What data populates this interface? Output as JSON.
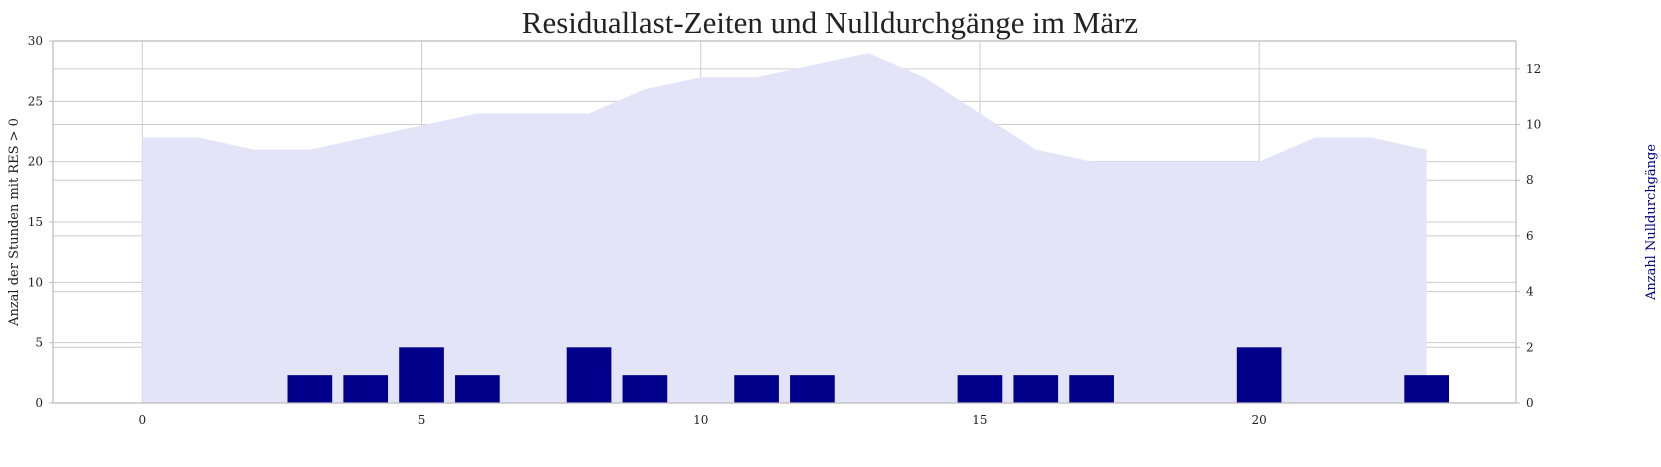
{
  "chart_data": {
    "type": "bar",
    "title": "Residuallast-Zeiten und Nulldurchgänge im März",
    "xlabel": "",
    "ylabel": "Anzal der Stunden mit RES > 0",
    "y2label": "Anzahl Nulldurchgänge",
    "xlim": [
      -1.6,
      24.6
    ],
    "ylim": [
      0,
      30
    ],
    "y2lim": [
      0,
      13
    ],
    "x_ticks": [
      0,
      5,
      10,
      15,
      20
    ],
    "y_ticks": [
      0,
      5,
      10,
      15,
      20,
      25,
      30
    ],
    "y2_ticks": [
      0,
      2,
      4,
      6,
      8,
      10,
      12
    ],
    "grid": true,
    "series": [
      {
        "axis": "left",
        "type": "area",
        "color": "#e4e4f9",
        "x": [
          0,
          1,
          2,
          3,
          4,
          5,
          6,
          7,
          8,
          9,
          10,
          11,
          12,
          13,
          14,
          15,
          16,
          17,
          18,
          19,
          20,
          21,
          22,
          23
        ],
        "values": [
          22,
          22,
          21,
          21,
          22,
          23,
          24,
          24,
          24,
          26,
          27,
          27,
          28,
          29,
          27,
          24,
          21,
          20,
          20,
          20,
          20,
          22,
          22,
          21
        ]
      },
      {
        "axis": "right",
        "type": "bar",
        "color": "#00008b",
        "x": [
          0,
          1,
          2,
          3,
          4,
          5,
          6,
          7,
          8,
          9,
          10,
          11,
          12,
          13,
          14,
          15,
          16,
          17,
          18,
          19,
          20,
          21,
          22,
          23
        ],
        "values": [
          0,
          0,
          0,
          1,
          1,
          2,
          1,
          0,
          2,
          1,
          0,
          1,
          1,
          0,
          0,
          1,
          1,
          1,
          0,
          0,
          2,
          0,
          0,
          1
        ]
      }
    ]
  }
}
